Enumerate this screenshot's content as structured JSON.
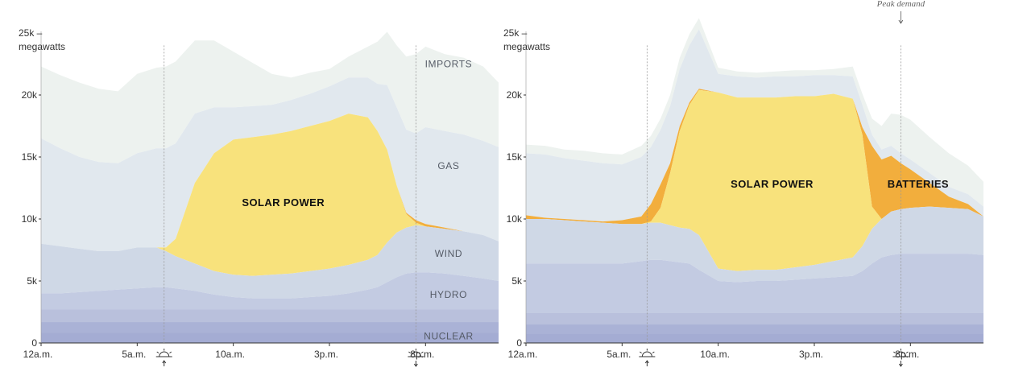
{
  "colors": {
    "imports": "#edf2ef",
    "gas": "#e1e8ee",
    "wind": "#cfd8e6",
    "hydro": "#c3cbe2",
    "nuclear_top": "#b9c0dc",
    "nuclear": "#aab2d6",
    "solar": "#f8e27c",
    "batteries": "#f2ae3d",
    "marker": "#999999"
  },
  "chart_data": [
    {
      "type": "area",
      "stacked": true,
      "unit_label": "megawatts",
      "ylim": [
        0,
        27000
      ],
      "y_ticks": [
        {
          "value": 0,
          "label": "0"
        },
        {
          "value": 5000,
          "label": "5k"
        },
        {
          "value": 10000,
          "label": "10k"
        },
        {
          "value": 15000,
          "label": "15k"
        },
        {
          "value": 20000,
          "label": "20k"
        },
        {
          "value": 25000,
          "label": "25k –"
        }
      ],
      "x_ticks": [
        {
          "hour": 0,
          "label": "12a.m."
        },
        {
          "hour": 5,
          "label": "5a.m."
        },
        {
          "hour": 10,
          "label": "10a.m."
        },
        {
          "hour": 15,
          "label": "3p.m."
        },
        {
          "hour": 20,
          "label": "8p.m."
        }
      ],
      "sunrise_hour": 6.4,
      "sunset_hour": 19.5,
      "x": [
        0,
        1,
        2,
        3,
        4,
        5,
        6,
        6.5,
        7,
        8,
        9,
        10,
        11,
        12,
        13,
        14,
        15,
        16,
        17,
        17.5,
        18,
        18.5,
        19,
        19.5,
        20,
        21,
        22,
        23,
        23.8
      ],
      "series": [
        {
          "name": "NUCLEAR",
          "key": "nuclear",
          "values": [
            2700,
            2700,
            2700,
            2700,
            2700,
            2700,
            2700,
            2700,
            2700,
            2700,
            2700,
            2700,
            2700,
            2700,
            2700,
            2700,
            2700,
            2700,
            2700,
            2700,
            2700,
            2700,
            2700,
            2700,
            2700,
            2700,
            2700,
            2700,
            2700
          ]
        },
        {
          "name": "HYDRO",
          "key": "hydro",
          "values": [
            1300,
            1300,
            1400,
            1500,
            1600,
            1700,
            1800,
            1800,
            1700,
            1500,
            1200,
            1000,
            900,
            900,
            900,
            1000,
            1100,
            1300,
            1600,
            1800,
            2200,
            2600,
            2900,
            3000,
            3000,
            2900,
            2700,
            2500,
            2300
          ]
        },
        {
          "name": "WIND",
          "key": "wind",
          "values": [
            4000,
            3800,
            3500,
            3200,
            3100,
            3300,
            3200,
            2900,
            2600,
            2200,
            1900,
            1800,
            1800,
            1900,
            2000,
            2100,
            2200,
            2300,
            2400,
            2600,
            3200,
            3600,
            3700,
            3800,
            3700,
            3600,
            3600,
            3500,
            3200
          ]
        },
        {
          "name": "SOLAR POWER",
          "key": "solar",
          "values": [
            0,
            0,
            0,
            0,
            0,
            0,
            0,
            300,
            1400,
            6500,
            9500,
            10900,
            11200,
            11300,
            11500,
            11700,
            11900,
            12200,
            11500,
            10000,
            7500,
            3800,
            1100,
            200,
            0,
            0,
            0,
            0,
            0
          ]
        },
        {
          "name": "BATTERIES",
          "key": "batteries",
          "values": [
            0,
            0,
            0,
            0,
            0,
            0,
            0,
            0,
            0,
            0,
            0,
            0,
            0,
            0,
            0,
            0,
            0,
            0,
            0,
            0,
            0,
            0,
            100,
            200,
            200,
            100,
            0,
            0,
            0
          ]
        },
        {
          "name": "GAS",
          "key": "gas",
          "values": [
            8500,
            7900,
            7400,
            7200,
            7100,
            7600,
            8000,
            8000,
            7700,
            5600,
            3700,
            2600,
            2500,
            2400,
            2500,
            2600,
            2800,
            2900,
            3200,
            3800,
            5200,
            6300,
            6700,
            7000,
            7800,
            7800,
            7800,
            7600,
            7600
          ]
        },
        {
          "name": "IMPORTS",
          "key": "imports",
          "values": [
            5800,
            5900,
            6000,
            5900,
            5800,
            6400,
            6500,
            6600,
            6600,
            5900,
            5400,
            4500,
            3500,
            2500,
            1800,
            1700,
            1400,
            1700,
            2500,
            3400,
            4300,
            5000,
            5900,
            6400,
            6500,
            6200,
            6200,
            6000,
            5200
          ]
        }
      ],
      "series_labels": [
        {
          "key": "imports",
          "text": "IMPORTS",
          "hour": 21.2,
          "value": 22500
        },
        {
          "key": "gas",
          "text": "GAS",
          "hour": 21.2,
          "value": 14300
        },
        {
          "key": "wind",
          "text": "WIND",
          "hour": 21.2,
          "value": 7200
        },
        {
          "key": "hydro",
          "text": "HYDRO",
          "hour": 21.2,
          "value": 3900
        },
        {
          "key": "nuclear",
          "text": "NUCLEAR",
          "hour": 21.2,
          "value": 550
        },
        {
          "key": "solar",
          "text": "SOLAR POWER",
          "hour": 12.6,
          "value": 11300
        }
      ]
    },
    {
      "type": "area",
      "stacked": true,
      "unit_label": "megawatts",
      "ylim": [
        0,
        27000
      ],
      "y_ticks": [
        {
          "value": 0,
          "label": "0"
        },
        {
          "value": 5000,
          "label": "5k"
        },
        {
          "value": 10000,
          "label": "10k"
        },
        {
          "value": 15000,
          "label": "15k"
        },
        {
          "value": 20000,
          "label": "20k"
        },
        {
          "value": 25000,
          "label": "25k –"
        }
      ],
      "x_ticks": [
        {
          "hour": 0,
          "label": "12a.m."
        },
        {
          "hour": 5,
          "label": "5a.m."
        },
        {
          "hour": 10,
          "label": "10a.m."
        },
        {
          "hour": 15,
          "label": "3p.m."
        },
        {
          "hour": 20,
          "label": "8p.m."
        }
      ],
      "sunrise_hour": 6.3,
      "sunset_hour": 19.5,
      "peak_annotation": {
        "text": "Peak demand",
        "hour": 19.5
      },
      "x": [
        0,
        1,
        2,
        3,
        4,
        5,
        6,
        6.5,
        7,
        7.5,
        8,
        8.5,
        9,
        10,
        11,
        12,
        13,
        14,
        15,
        16,
        17,
        17.5,
        18,
        18.5,
        19,
        19.5,
        20,
        21,
        22,
        23,
        23.8
      ],
      "series": [
        {
          "name": "NUCLEAR",
          "key": "nuclear",
          "values": [
            2400,
            2400,
            2400,
            2400,
            2400,
            2400,
            2400,
            2400,
            2400,
            2400,
            2400,
            2400,
            2400,
            2400,
            2400,
            2400,
            2400,
            2400,
            2400,
            2400,
            2400,
            2400,
            2400,
            2400,
            2400,
            2400,
            2400,
            2400,
            2400,
            2400,
            2400
          ]
        },
        {
          "name": "HYDRO",
          "key": "hydro",
          "values": [
            4000,
            4000,
            4000,
            4000,
            4000,
            4000,
            4200,
            4300,
            4300,
            4200,
            4100,
            4000,
            3500,
            2600,
            2500,
            2600,
            2600,
            2700,
            2800,
            2900,
            3000,
            3400,
            4000,
            4500,
            4700,
            4800,
            4800,
            4800,
            4800,
            4800,
            4700
          ]
        },
        {
          "name": "WIND",
          "key": "wind",
          "values": [
            3600,
            3600,
            3500,
            3400,
            3300,
            3200,
            3000,
            3000,
            3000,
            2900,
            2800,
            2800,
            2800,
            1000,
            900,
            900,
            900,
            1000,
            1100,
            1300,
            1500,
            2000,
            2800,
            3100,
            3500,
            3600,
            3700,
            3800,
            3700,
            3600,
            3100
          ]
        },
        {
          "name": "SOLAR POWER",
          "key": "solar",
          "values": [
            0,
            0,
            0,
            0,
            0,
            0,
            0,
            100,
            1200,
            4200,
            7800,
            10000,
            11700,
            14200,
            14000,
            13900,
            13900,
            13800,
            13600,
            13500,
            12800,
            9000,
            1800,
            0,
            0,
            0,
            0,
            0,
            0,
            0,
            0
          ]
        },
        {
          "name": "BATTERIES",
          "key": "batteries",
          "values": [
            300,
            100,
            100,
            100,
            100,
            300,
            600,
            1400,
            1900,
            800,
            400,
            200,
            100,
            0,
            0,
            0,
            0,
            0,
            0,
            0,
            0,
            600,
            4900,
            4800,
            4500,
            3700,
            3100,
            1900,
            900,
            400,
            0
          ]
        },
        {
          "name": "GAS",
          "key": "gas",
          "values": [
            5000,
            5100,
            4900,
            4800,
            4700,
            4500,
            4800,
            4600,
            4400,
            4600,
            4600,
            4600,
            4800,
            1500,
            1700,
            1600,
            1700,
            1600,
            1700,
            1500,
            1800,
            1800,
            900,
            800,
            800,
            800,
            800,
            800,
            800,
            800,
            800
          ]
        },
        {
          "name": "IMPORTS",
          "key": "imports",
          "values": [
            700,
            700,
            700,
            800,
            800,
            800,
            900,
            900,
            900,
            900,
            900,
            900,
            900,
            500,
            400,
            400,
            400,
            500,
            400,
            500,
            800,
            900,
            1300,
            1900,
            2600,
            3100,
            3200,
            2900,
            2700,
            2300,
            2000
          ]
        }
      ],
      "series_labels": [
        {
          "key": "solar",
          "text": "SOLAR POWER",
          "hour": 12.8,
          "value": 12800
        },
        {
          "key": "batteries",
          "text": "BATTERIES",
          "hour": 20.4,
          "value": 12800
        }
      ]
    }
  ]
}
